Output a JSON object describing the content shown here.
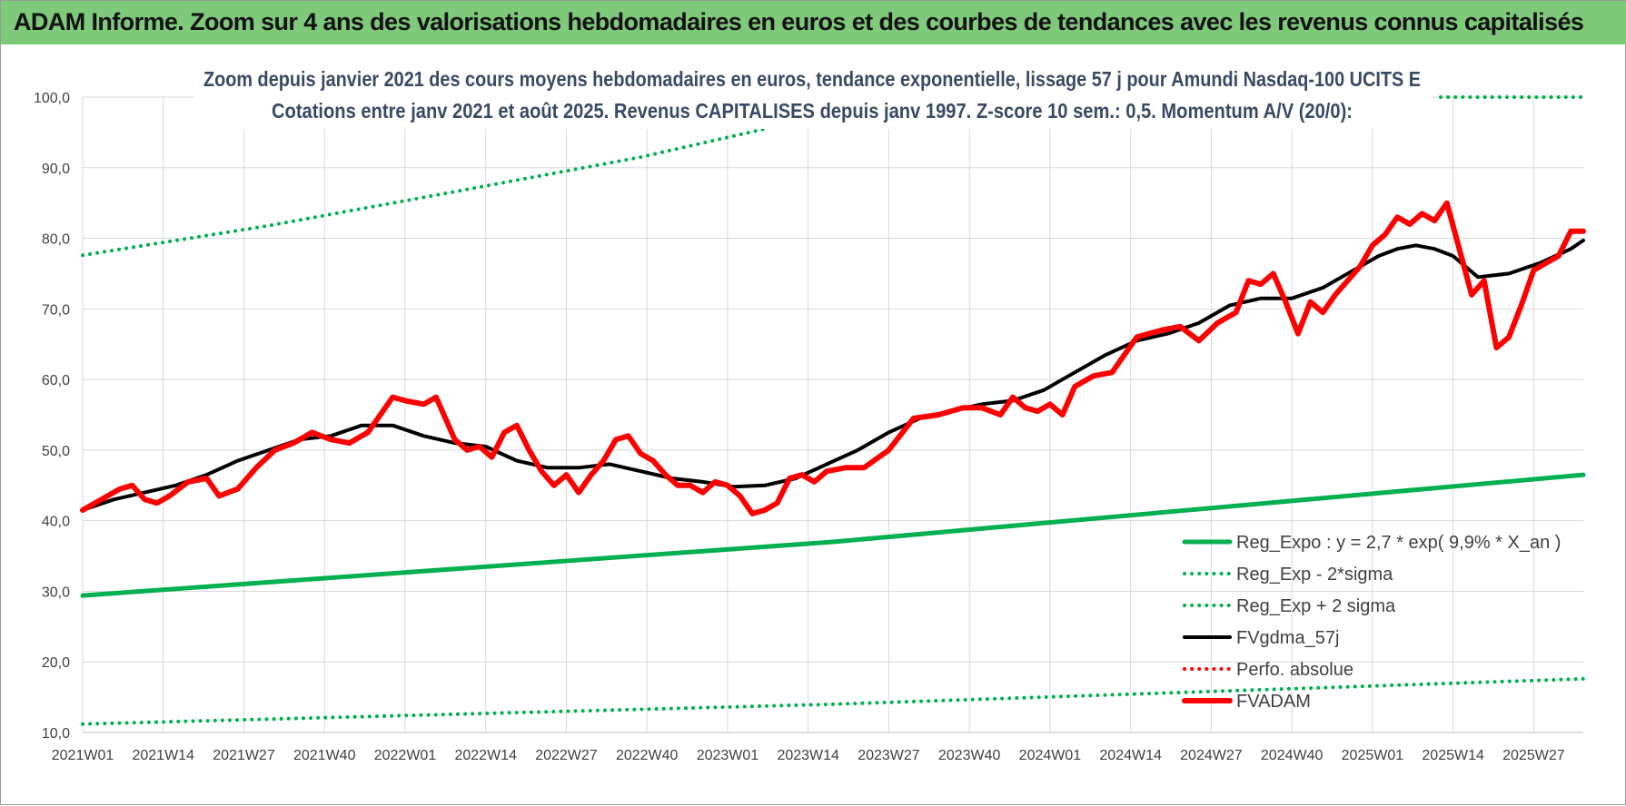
{
  "header": {
    "title": "ADAM Informe. Zoom sur 4 ans des valorisations hebdomadaires en euros et des courbes de tendances avec les revenus connus capitalisés"
  },
  "colors": {
    "header_bg": "#7fc97a",
    "green": "#00b050",
    "red": "#ff0000",
    "black": "#000000",
    "grid": "#d9d9d9"
  },
  "chart_data": {
    "type": "line",
    "title_lines": [
      "Zoom depuis janvier 2021 des cours moyens hebdomadaires en euros, tendance exponentielle, lissage 57 j pour Amundi Nasdaq-100 UCITS E",
      "Cotations entre janv 2021 et août 2025. Revenus CAPITALISES depuis janv 1997. Z-score 10 sem.: 0,5. Momentum A/V (20/0):"
    ],
    "y_ticks": [
      "10,0",
      "20,0",
      "30,0",
      "40,0",
      "50,0",
      "60,0",
      "70,0",
      "80,0",
      "90,0",
      "100,0"
    ],
    "ylim": [
      10,
      100
    ],
    "x_ticks": [
      "2021W01",
      "2021W14",
      "2021W27",
      "2021W40",
      "2022W01",
      "2022W14",
      "2022W27",
      "2022W40",
      "2023W01",
      "2023W14",
      "2023W27",
      "2023W40",
      "2024W01",
      "2024W14",
      "2024W27",
      "2024W40",
      "2025W01",
      "2025W14",
      "2025W27"
    ],
    "week_span": 242,
    "series": [
      {
        "name": "Reg_Expo : y = 2,7 * exp( 9,9% *  X_an )",
        "color": "#00b050",
        "style": "solid-thick",
        "x": [
          0,
          121,
          242
        ],
        "values": [
          29.4,
          37.0,
          46.5
        ]
      },
      {
        "name": "Reg_Exp - 2*sigma",
        "color": "#00b050",
        "style": "dotted",
        "x": [
          0,
          121,
          242
        ],
        "values": [
          11.2,
          14.0,
          17.6
        ]
      },
      {
        "name": "Reg_Exp + 2 sigma",
        "color": "#00b050",
        "style": "dotted",
        "x": [
          0,
          30,
          60,
          90,
          110
        ],
        "values": [
          77.6,
          81.8,
          86.6,
          91.5,
          95.5
        ]
      },
      {
        "name": "Reg_Exp + 2 sigma (suite)",
        "color": "#00b050",
        "style": "dotted",
        "legend": false,
        "x": [
          219,
          242
        ],
        "values": [
          100,
          100
        ]
      },
      {
        "name": "FVgdma_57j",
        "color": "#000000",
        "style": "solid",
        "x": [
          0,
          5,
          10,
          15,
          20,
          25,
          30,
          35,
          40,
          45,
          50,
          55,
          60,
          65,
          70,
          75,
          80,
          85,
          90,
          95,
          100,
          105,
          110,
          115,
          120,
          125,
          130,
          135,
          140,
          145,
          150,
          155,
          160,
          165,
          170,
          175,
          180,
          185,
          190,
          195,
          200,
          203,
          206,
          209,
          212,
          215,
          218,
          221,
          225,
          230,
          235,
          240,
          242
        ],
        "values": [
          41.5,
          43.0,
          44.0,
          45.0,
          46.5,
          48.5,
          50.0,
          51.5,
          52.0,
          53.5,
          53.5,
          52.0,
          51.0,
          50.5,
          48.5,
          47.5,
          47.5,
          48.0,
          47.0,
          46.0,
          45.5,
          44.8,
          45.0,
          46.0,
          48.0,
          50.0,
          52.5,
          54.5,
          55.5,
          56.5,
          57.0,
          58.5,
          61.0,
          63.5,
          65.5,
          66.5,
          68.0,
          70.5,
          71.5,
          71.5,
          73.0,
          74.5,
          76.0,
          77.5,
          78.5,
          79.0,
          78.5,
          77.5,
          74.5,
          75.0,
          76.5,
          78.5,
          79.7
        ]
      },
      {
        "name": "Perfo. absolue",
        "color": "#ff0000",
        "style": "dotted",
        "x": [],
        "values": []
      },
      {
        "name": "FVADAM",
        "color": "#ff0000",
        "style": "solid-thick",
        "x": [
          0,
          3,
          6,
          8,
          10,
          12,
          14,
          17,
          20,
          22,
          25,
          28,
          31,
          34,
          37,
          40,
          43,
          46,
          48,
          50,
          52,
          55,
          57,
          60,
          62,
          64,
          66,
          68,
          70,
          72,
          74,
          76,
          78,
          80,
          82,
          84,
          86,
          88,
          90,
          92,
          94,
          96,
          98,
          100,
          102,
          104,
          106,
          108,
          110,
          112,
          114,
          116,
          118,
          120,
          123,
          126,
          130,
          134,
          138,
          142,
          145,
          148,
          150,
          152,
          154,
          156,
          158,
          160,
          163,
          166,
          170,
          174,
          177,
          180,
          183,
          186,
          188,
          190,
          192,
          194,
          196,
          198,
          200,
          202,
          204,
          206,
          208,
          210,
          212,
          214,
          216,
          218,
          220,
          222,
          224,
          226,
          228,
          230,
          232,
          234,
          236,
          238,
          240,
          242
        ],
        "values": [
          41.5,
          43.0,
          44.5,
          45.0,
          43.0,
          42.5,
          43.5,
          45.5,
          46.0,
          43.5,
          44.5,
          47.5,
          50.0,
          51.0,
          52.5,
          51.5,
          51.0,
          52.5,
          55.0,
          57.5,
          57.0,
          56.5,
          57.5,
          51.5,
          50.0,
          50.5,
          49.0,
          52.5,
          53.5,
          50.0,
          47.0,
          45.0,
          46.5,
          44.0,
          46.5,
          48.5,
          51.5,
          52.0,
          49.5,
          48.5,
          46.5,
          45.0,
          45.0,
          44.0,
          45.5,
          45.0,
          43.5,
          41.0,
          41.5,
          42.5,
          46.0,
          46.5,
          45.5,
          47.0,
          47.5,
          47.5,
          50.0,
          54.5,
          55.0,
          56.0,
          56.0,
          55.0,
          57.5,
          56.0,
          55.5,
          56.5,
          55.0,
          59.0,
          60.5,
          61.0,
          66.0,
          67.0,
          67.5,
          65.5,
          68.0,
          69.5,
          74.0,
          73.5,
          75.0,
          71.0,
          66.5,
          71.0,
          69.5,
          72.0,
          74.0,
          76.0,
          79.0,
          80.5,
          83.0,
          82.0,
          83.5,
          82.5,
          85.0,
          78.5,
          72.0,
          74.0,
          64.5,
          66.0,
          70.5,
          75.5,
          76.5,
          77.5,
          81.0,
          81.0
        ]
      }
    ],
    "legend_position": "bottom-right",
    "grid": true
  }
}
